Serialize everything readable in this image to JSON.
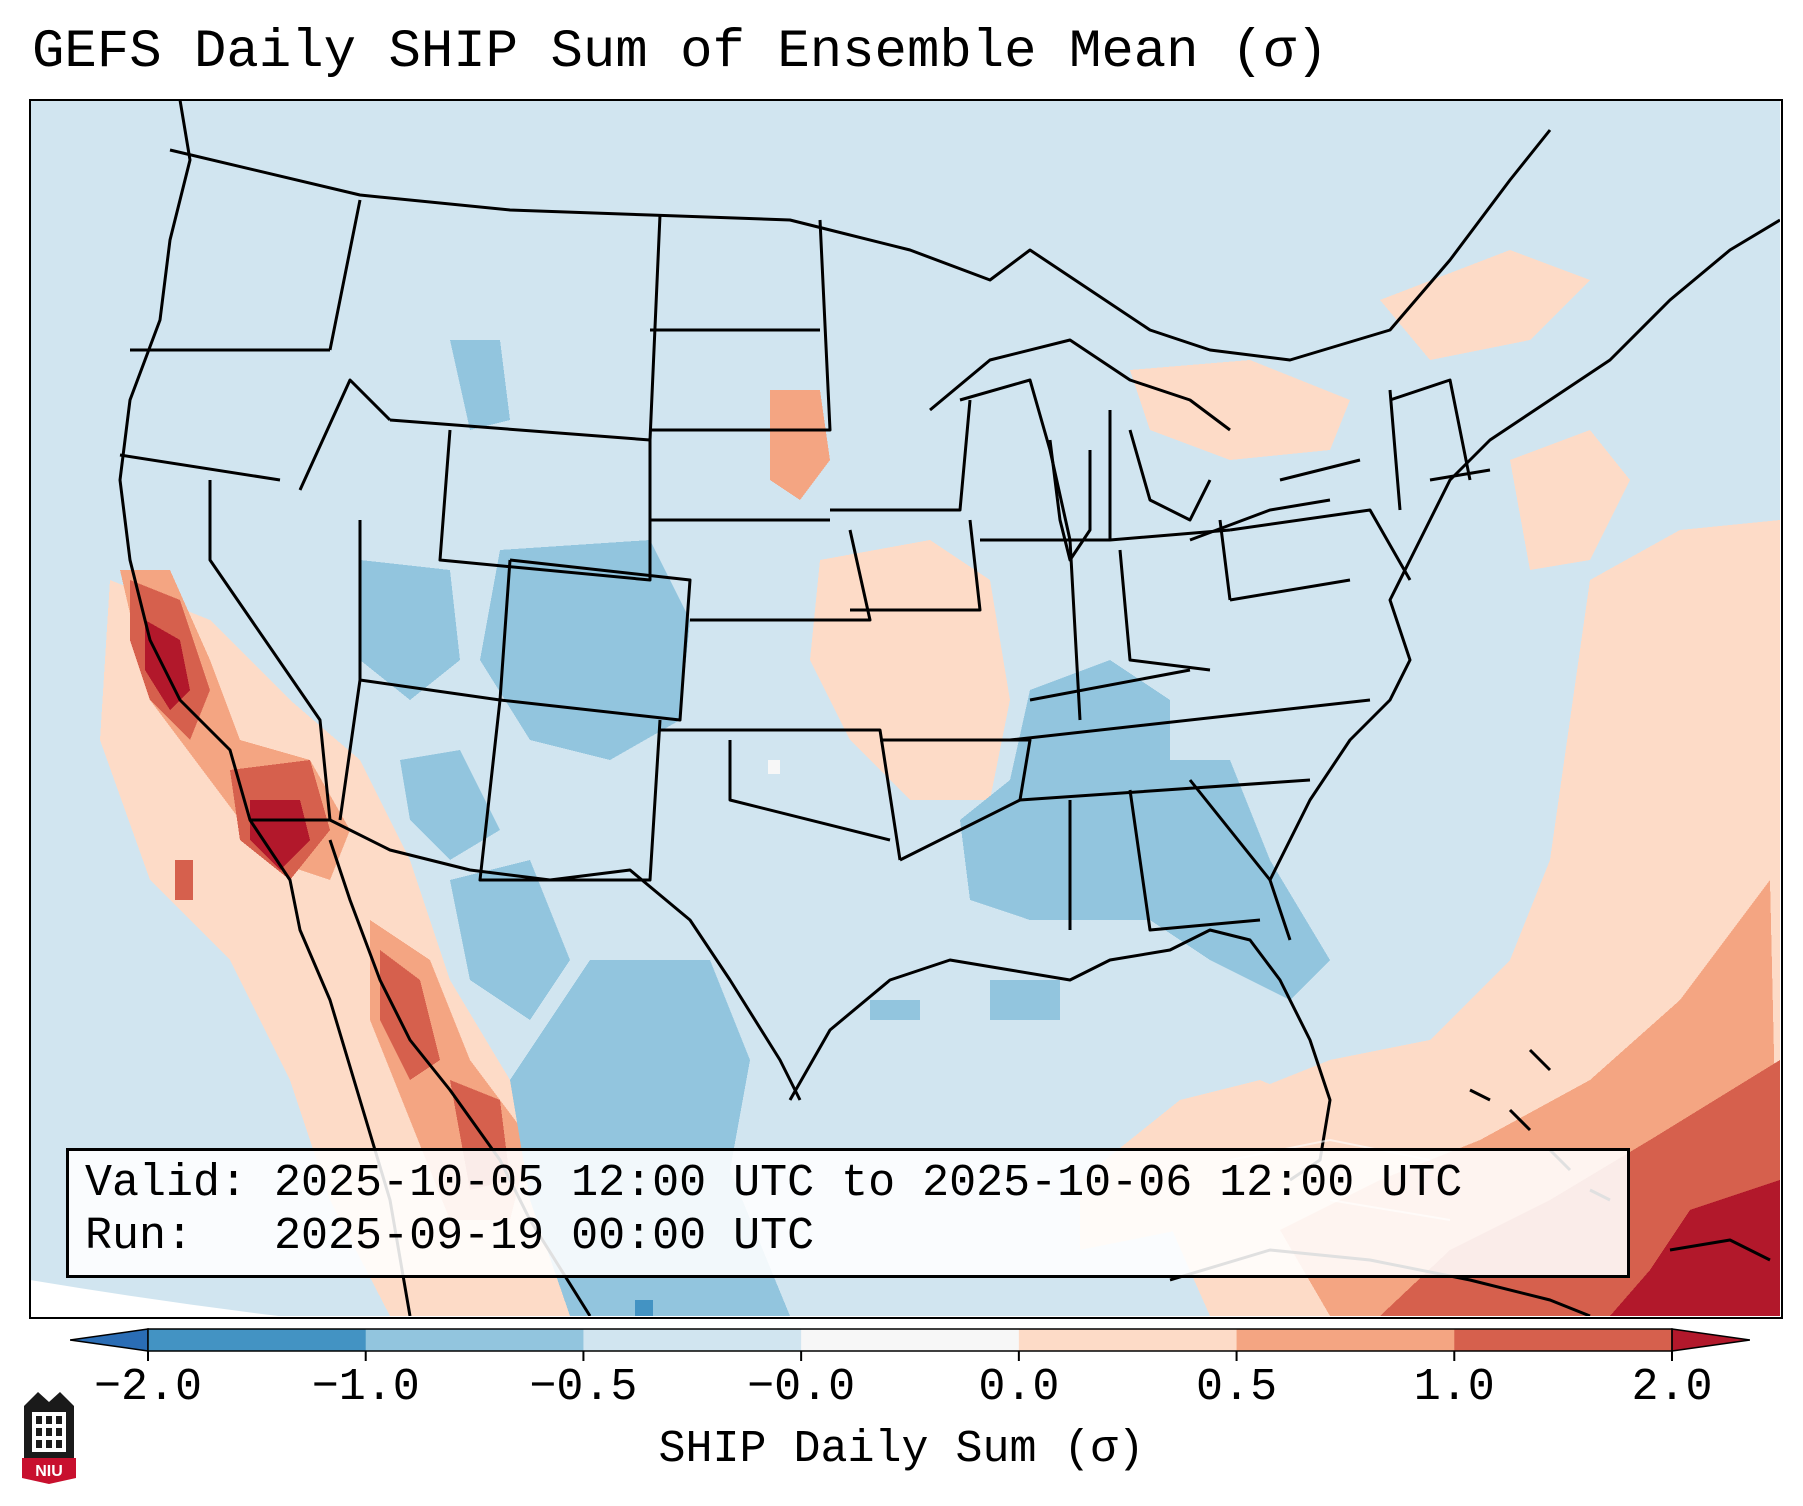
{
  "title": "GEFS Daily SHIP Sum of Ensemble Mean (σ)",
  "info": {
    "valid_label": "Valid:",
    "valid_value": "2025-10-05 12:00 UTC to 2025-10-06 12:00 UTC",
    "run_label": "Run:",
    "run_value": "2025-09-19 00:00 UTC"
  },
  "colorbar": {
    "label": "SHIP Daily Sum (σ)",
    "tick_labels": [
      "−2.0",
      "−1.0",
      "−0.5",
      "−0.0",
      "0.0",
      "0.5",
      "1.0",
      "2.0"
    ],
    "colors": [
      "#2a6db5",
      "#4393c3",
      "#92c5de",
      "#d1e5f0",
      "#f7f7f7",
      "#fddbc7",
      "#f4a582",
      "#d6604d",
      "#b2182b"
    ]
  },
  "logo_text": "NIU",
  "map": {
    "background_value": "-0.0",
    "regions": [
      "California coast",
      "Arizona",
      "Colorado",
      "Southeast US",
      "Atlantic",
      "Caribbean",
      "Gulf of Mexico",
      "Great Lakes"
    ]
  }
}
